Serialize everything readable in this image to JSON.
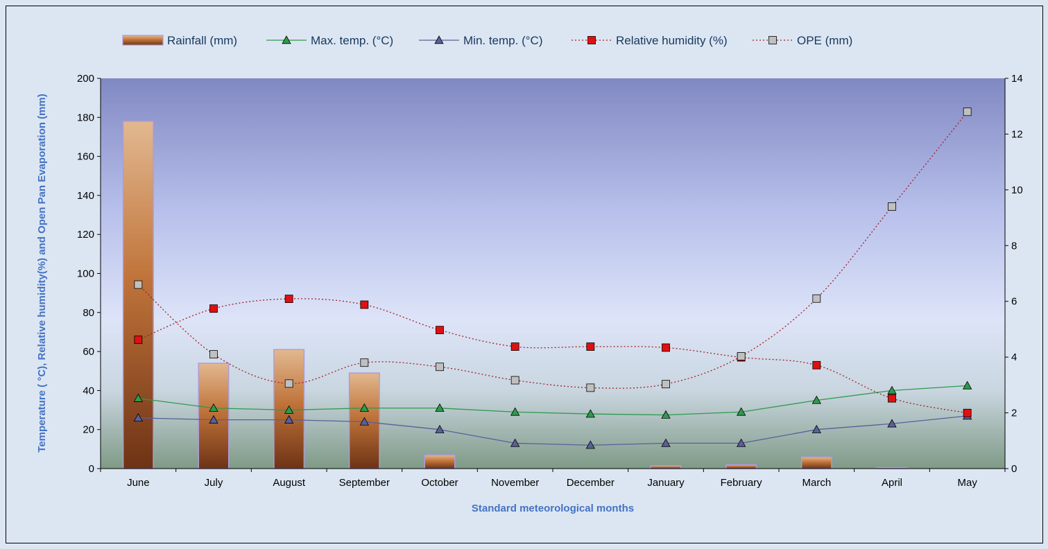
{
  "chart_data": {
    "type": "bar",
    "xlabel": "Standard meteorological months",
    "ylabel": "Temperature ( °C), Relative humidity(%) and Open Pan Evaporation (mm)",
    "categories": [
      "June",
      "July",
      "August",
      "September",
      "October",
      "November",
      "December",
      "January",
      "February",
      "March",
      "April",
      "May"
    ],
    "ylim": [
      0,
      200
    ],
    "y_ticks": [
      "0",
      "20",
      "40",
      "60",
      "80",
      "100",
      "120",
      "140",
      "160",
      "180",
      "200"
    ],
    "y2lim": [
      0,
      14
    ],
    "y2_ticks": [
      "0",
      "2",
      "4",
      "6",
      "8",
      "10",
      "12",
      "14"
    ],
    "legend_position": "top",
    "series": [
      {
        "name": "Rainfall (mm)",
        "kind": "bar",
        "axis": "left",
        "color": "#b5601e",
        "values": [
          178,
          54,
          61,
          49,
          7,
          0,
          0,
          1.5,
          2,
          6,
          0.5,
          0
        ]
      },
      {
        "name": "Max. temp. (°C)",
        "kind": "line",
        "marker": "triangle",
        "axis": "left",
        "color": "#2e9a4e",
        "values": [
          36,
          31,
          30,
          31,
          31,
          29,
          28,
          27.5,
          29,
          35,
          40,
          42.5
        ]
      },
      {
        "name": "Min. temp. (°C)",
        "kind": "line",
        "marker": "triangle",
        "axis": "left",
        "color": "#5a5f9a",
        "values": [
          26,
          25,
          25,
          24,
          20,
          13,
          12,
          13,
          13,
          20,
          23,
          27
        ]
      },
      {
        "name": "Relative humidity (%)",
        "kind": "line",
        "marker": "square",
        "axis": "left",
        "color": "#e01010",
        "values": [
          66,
          82,
          87,
          84,
          71,
          62.5,
          62.5,
          62,
          57,
          53,
          36,
          28.5
        ]
      },
      {
        "name": "OPE (mm)",
        "kind": "line",
        "marker": "square",
        "axis": "right",
        "color": "#c0c0c0",
        "values": [
          6.6,
          4.1,
          3.05,
          3.8,
          3.65,
          3.17,
          2.9,
          3.03,
          4.03,
          6.1,
          9.4,
          12.8
        ]
      }
    ]
  }
}
